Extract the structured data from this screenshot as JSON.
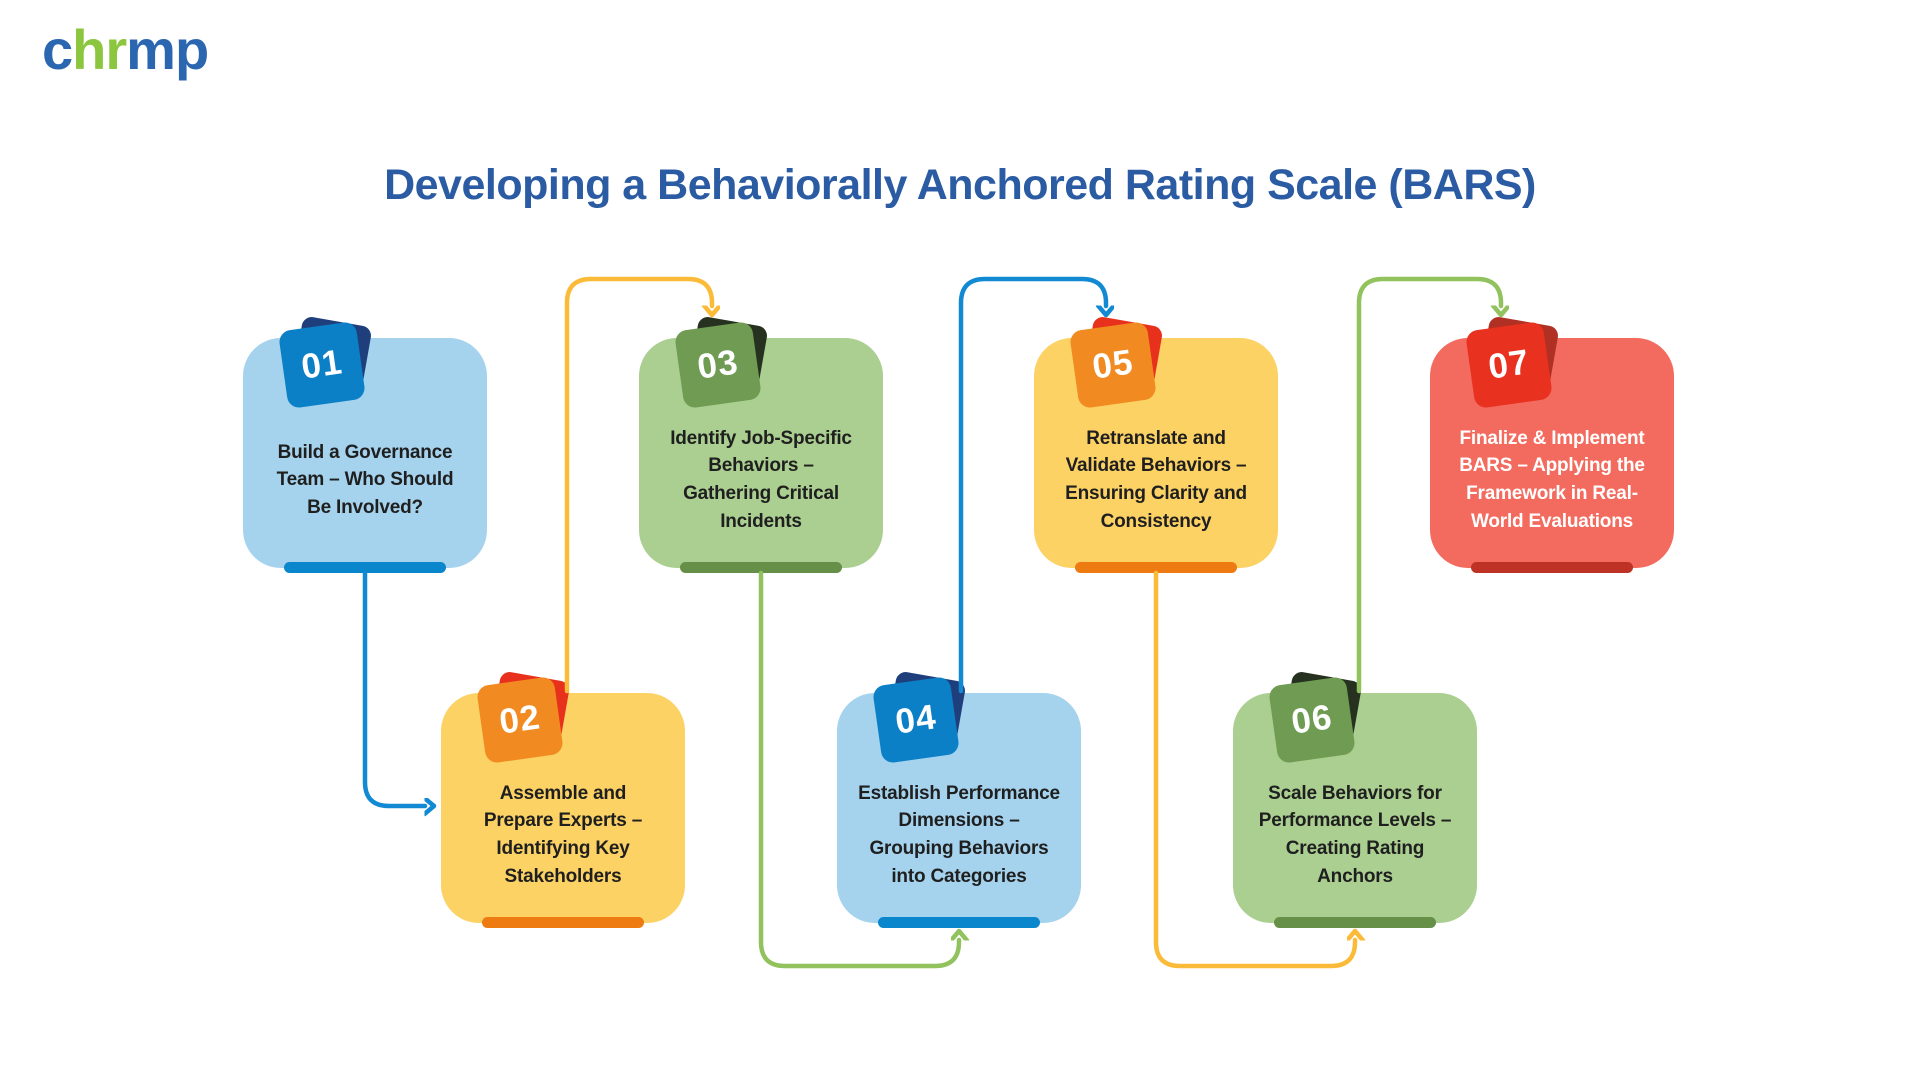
{
  "logo": {
    "text": "chrmp",
    "letters": [
      {
        "ch": "c",
        "color": "#2B66B0"
      },
      {
        "ch": "h",
        "color": "#8CC63F"
      },
      {
        "ch": "r",
        "color": "#8CC63F"
      },
      {
        "ch": "m",
        "color": "#2B66B0"
      },
      {
        "ch": "p",
        "color": "#2B66B0"
      }
    ]
  },
  "title": {
    "text": "Developing a Behaviorally Anchored Rating Scale (BARS)",
    "color": "#2B5CA3"
  },
  "steps": [
    {
      "number": "01",
      "label": "Build a Governance\nTeam – Who Should\nBe Involved?",
      "card_color": "#A5D3EE",
      "badge_color": "#0C80C6",
      "bar_color": "#0A86CC",
      "fold_color": "#1E3F7C",
      "text_color": "#1F1F1F"
    },
    {
      "number": "02",
      "label": "Assemble and\nPrepare Experts –\nIdentifying Key\nStakeholders",
      "card_color": "#FCD265",
      "badge_color": "#F18A21",
      "bar_color": "#EE7A12",
      "fold_color": "#E8311C",
      "text_color": "#1F1F1F"
    },
    {
      "number": "03",
      "label": "Identify Job-Specific\nBehaviors –\nGathering Critical\nIncidents",
      "card_color": "#AACF91",
      "badge_color": "#6F9B52",
      "bar_color": "#668F47",
      "fold_color": "#26321F",
      "text_color": "#1F1F1F"
    },
    {
      "number": "04",
      "label": "Establish Performance\nDimensions –\nGrouping Behaviors\ninto Categories",
      "card_color": "#A5D3EE",
      "badge_color": "#0C80C6",
      "bar_color": "#0A86CC",
      "fold_color": "#1E3F7C",
      "text_color": "#1F1F1F"
    },
    {
      "number": "05",
      "label": "Retranslate and\nValidate Behaviors –\nEnsuring Clarity and\nConsistency",
      "card_color": "#FCD265",
      "badge_color": "#F18A21",
      "bar_color": "#EE7A12",
      "fold_color": "#E8311C",
      "text_color": "#1F1F1F"
    },
    {
      "number": "06",
      "label": "Scale Behaviors for\nPerformance Levels –\nCreating Rating\nAnchors",
      "card_color": "#AACF91",
      "badge_color": "#6F9B52",
      "bar_color": "#668F47",
      "fold_color": "#26321F",
      "text_color": "#1F1F1F"
    },
    {
      "number": "07",
      "label": "Finalize & Implement\nBARS – Applying the\nFramework in Real-\nWorld Evaluations",
      "card_color": "#F26B5E",
      "badge_color": "#E93120",
      "bar_color": "#BE3226",
      "fold_color": "#B03024",
      "text_color": "#FFFFFF"
    }
  ],
  "connectors": [
    {
      "from": "01",
      "to": "02",
      "color": "#128AD3"
    },
    {
      "from": "02",
      "to": "03",
      "color": "#FBBA37"
    },
    {
      "from": "03",
      "to": "04",
      "color": "#92C25E"
    },
    {
      "from": "04",
      "to": "05",
      "color": "#128AD3"
    },
    {
      "from": "05",
      "to": "06",
      "color": "#FBBA37"
    },
    {
      "from": "06",
      "to": "07",
      "color": "#92C25E"
    }
  ]
}
